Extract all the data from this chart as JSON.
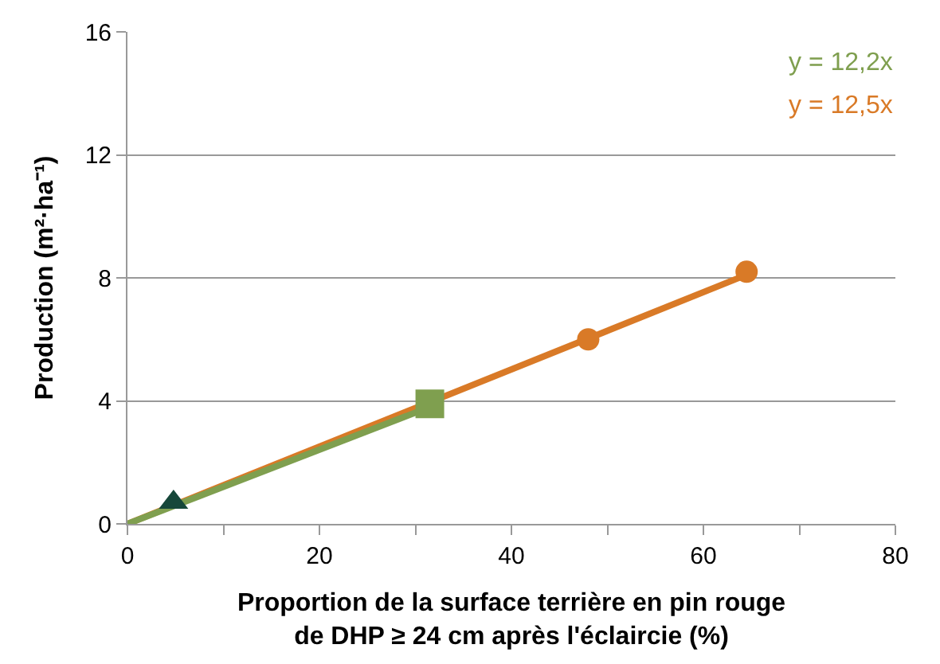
{
  "chart_data": {
    "type": "scatter",
    "xlabel": "Proportion de la surface terrière en pin rouge\nde DHP ≥ 24 cm après l'éclaircie (%)",
    "ylabel": "Production (m²·ha⁻¹)",
    "xlim": [
      0,
      80
    ],
    "xticks": [
      0,
      {
        "value": 10,
        "label": null
      },
      20,
      {
        "value": 30,
        "label": null
      },
      40,
      {
        "value": 50,
        "label": null
      },
      60,
      {
        "value": 70,
        "label": null
      },
      80
    ],
    "ylim": [
      0,
      16
    ],
    "yticks": [
      0,
      4,
      8,
      12,
      16
    ],
    "grid": "y",
    "series": [
      {
        "type": "line",
        "color": "#d97a27",
        "x": [
          0,
          64.5
        ],
        "values": [
          0,
          8.1
        ],
        "marker": "none"
      },
      {
        "type": "line",
        "color": "#7f9f4f",
        "x": [
          0,
          31.5
        ],
        "values": [
          0,
          3.8
        ],
        "marker": "none"
      },
      {
        "color": "#16473a",
        "x": [
          4.8
        ],
        "values": [
          0.7
        ],
        "marker": "triangle"
      },
      {
        "color": "#7f9f4f",
        "x": [
          31.5
        ],
        "values": [
          3.9
        ],
        "marker": "square"
      },
      {
        "color": "#d97a27",
        "x": [
          48,
          64.5
        ],
        "values": [
          6.0,
          8.2
        ],
        "marker": "circle"
      }
    ],
    "annotations": [
      "y = 12,2x",
      "y = 12,5x"
    ]
  }
}
